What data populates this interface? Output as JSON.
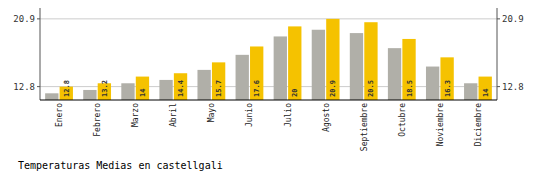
{
  "chart_data": {
    "type": "bar",
    "title": "Temperaturas Medias en castellgali",
    "categories": [
      "Enero",
      "Febrero",
      "Marzo",
      "Abril",
      "Mayo",
      "Junio",
      "Julio",
      "Agosto",
      "Septiembre",
      "Octubre",
      "Noviembre",
      "Diciembre"
    ],
    "series": [
      {
        "color": "#B0AFA8",
        "values": [
          12.0,
          12.4,
          13.2,
          13.6,
          14.8,
          16.6,
          18.8,
          19.6,
          19.2,
          17.4,
          15.2,
          13.2
        ]
      },
      {
        "color": "#F5C200",
        "data_labels": true,
        "values": [
          12.8,
          13.2,
          14.0,
          14.4,
          15.7,
          17.6,
          20.0,
          20.9,
          20.5,
          18.5,
          16.3,
          14.0
        ]
      }
    ],
    "ylim": [
      11.2,
      22.2
    ],
    "yticks": [
      12.8,
      20.9
    ],
    "y2lim": [
      11.2,
      22.2
    ],
    "y2ticks": [
      12.8,
      20.9
    ],
    "grid": true
  }
}
